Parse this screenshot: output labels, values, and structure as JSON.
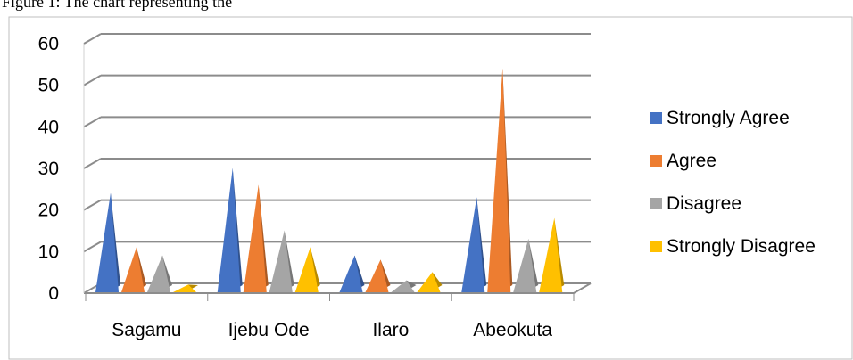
{
  "caption": "Figure 1: The chart representing the",
  "chart_data": {
    "type": "bar",
    "style": "3d-pyramid",
    "categories": [
      "Sagamu",
      "Ijebu Ode",
      "Ilaro",
      "Abeokuta"
    ],
    "series": [
      {
        "name": "Strongly Agree",
        "color": "#4472C4",
        "values": [
          23,
          29,
          8,
          22
        ]
      },
      {
        "name": "Agree",
        "color": "#ED7D31",
        "values": [
          10,
          25,
          7,
          53
        ]
      },
      {
        "name": "Disagree",
        "color": "#A5A5A5",
        "values": [
          8,
          14,
          2,
          12
        ]
      },
      {
        "name": "Strongly Disagree",
        "color": "#FFC000",
        "values": [
          1,
          10,
          4,
          17
        ]
      }
    ],
    "ylim": [
      0,
      60
    ],
    "yticks": [
      0,
      10,
      20,
      30,
      40,
      50,
      60
    ],
    "grid": true,
    "legend": "right"
  }
}
